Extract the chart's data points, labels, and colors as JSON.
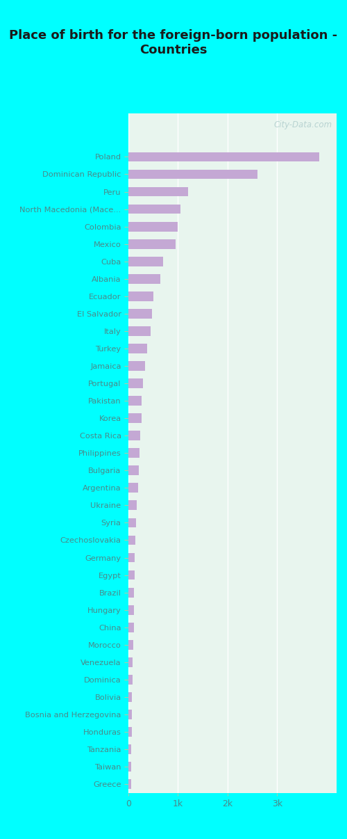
{
  "title": "Place of birth for the foreign-born population -\nCountries",
  "categories": [
    "Poland",
    "Dominican Republic",
    "Peru",
    "North Macedonia (Mace...",
    "Colombia",
    "Mexico",
    "Cuba",
    "Albania",
    "Ecuador",
    "El Salvador",
    "Italy",
    "Turkey",
    "Jamaica",
    "Portugal",
    "Pakistan",
    "Korea",
    "Costa Rica",
    "Philippines",
    "Bulgaria",
    "Argentina",
    "Ukraine",
    "Syria",
    "Czechoslovakia",
    "Germany",
    "Egypt",
    "Brazil",
    "Hungary",
    "China",
    "Morocco",
    "Venezuela",
    "Dominica",
    "Bolivia",
    "Bosnia and Herzegovina",
    "Honduras",
    "Tanzania",
    "Taiwan",
    "Greece"
  ],
  "values": [
    3850,
    2600,
    1200,
    1050,
    1000,
    950,
    700,
    650,
    500,
    480,
    450,
    380,
    340,
    290,
    270,
    260,
    240,
    230,
    210,
    190,
    170,
    155,
    140,
    130,
    120,
    115,
    110,
    105,
    95,
    85,
    80,
    75,
    70,
    65,
    60,
    55,
    50
  ],
  "bar_color": "#c4a8d4",
  "background_color": "#e8f5ee",
  "outer_background": "#00ffff",
  "title_color": "#1a1a1a",
  "label_color": "#4a8a8a",
  "tick_color": "#4a8a8a",
  "watermark": "City-Data.com",
  "xlim": [
    0,
    4200
  ],
  "xtick_values": [
    0,
    1000,
    2000,
    3000
  ],
  "xtick_labels": [
    "0",
    "1k",
    "2k",
    "3k"
  ]
}
